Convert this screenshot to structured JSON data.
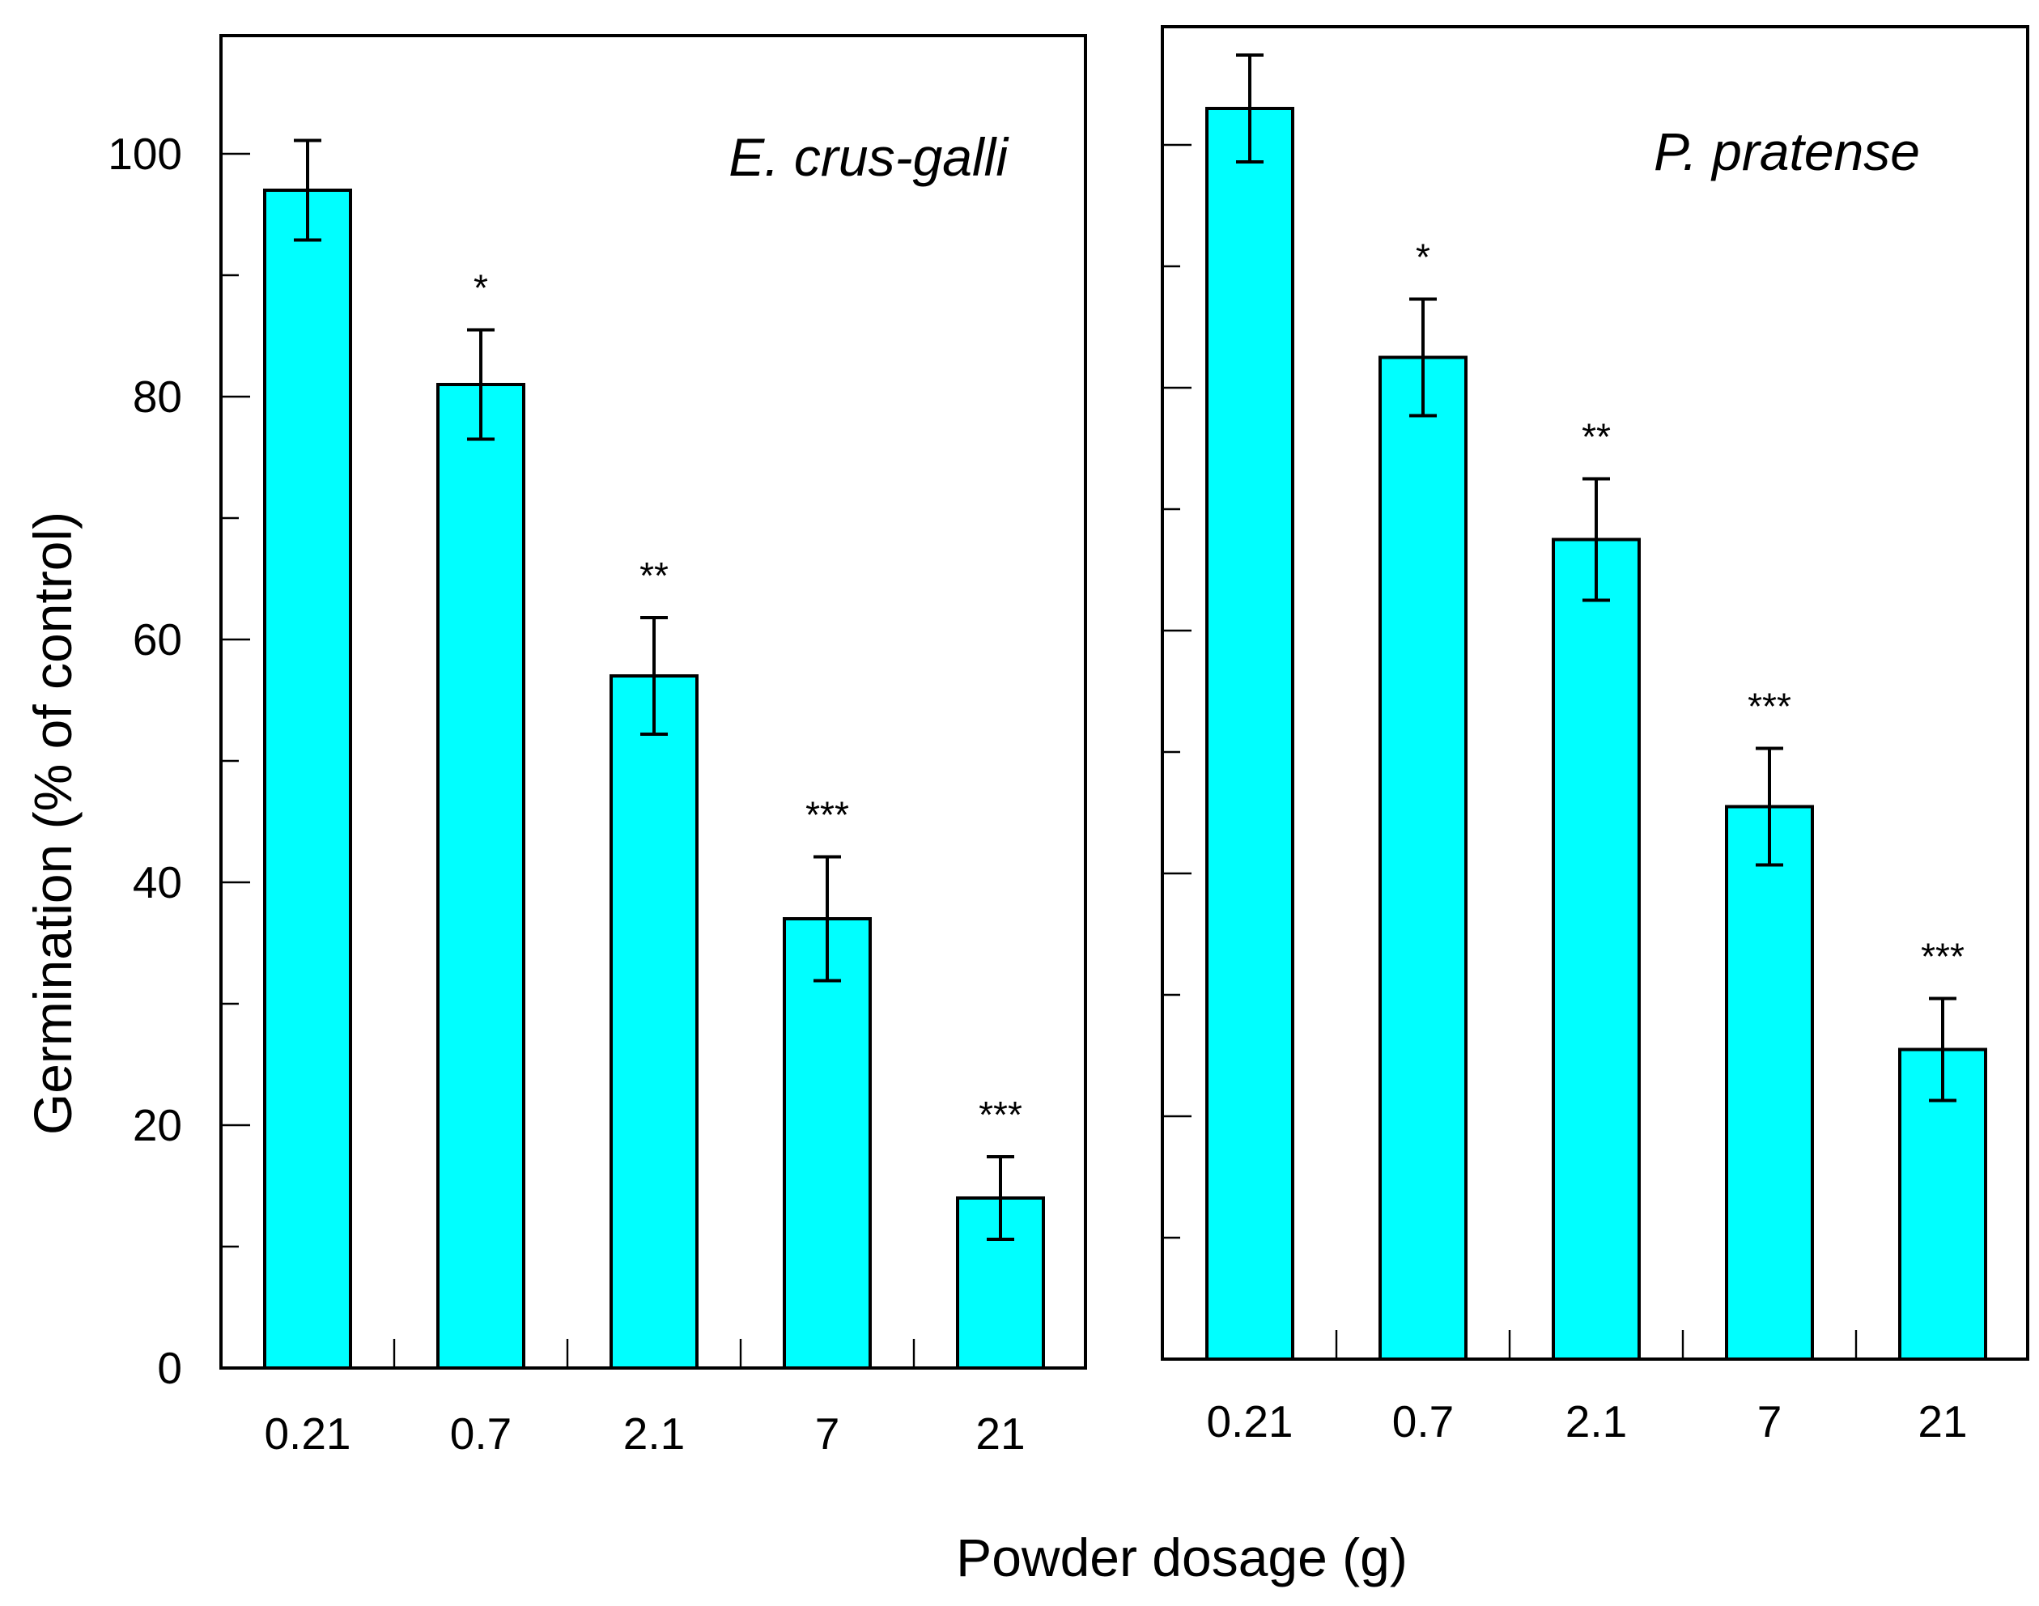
{
  "chart_data": [
    {
      "type": "bar",
      "title": "E. crus-galli",
      "categories": [
        "0.21",
        "0.7",
        "2.1",
        "7",
        "21"
      ],
      "values": [
        97,
        81,
        57,
        37,
        14
      ],
      "error": [
        4.1,
        4.5,
        4.8,
        5.1,
        3.4
      ],
      "significance": [
        "",
        "*",
        "**",
        "***",
        "***"
      ],
      "ylabel": "Germination  (% of control)",
      "xlabel": "Powder dosage (g)",
      "ylim": [
        0,
        110
      ],
      "yticks": [
        "0",
        "20",
        "40",
        "60",
        "80",
        "100"
      ],
      "bar_color": "#00FFFF"
    },
    {
      "type": "bar",
      "title": "P. pratense",
      "categories": [
        "0.21",
        "0.7",
        "2.1",
        "7",
        "21"
      ],
      "values": [
        103,
        82.5,
        67.5,
        45.5,
        25.5
      ],
      "error": [
        4.4,
        4.8,
        5.0,
        4.8,
        4.2
      ],
      "significance": [
        "",
        "*",
        "**",
        "***",
        "***"
      ],
      "ylim": [
        0,
        110
      ],
      "bar_color": "#00FFFF"
    }
  ],
  "shared": {
    "xlabel": "Powder dosage (g)",
    "ylabel": "Germination  (% of control)"
  }
}
